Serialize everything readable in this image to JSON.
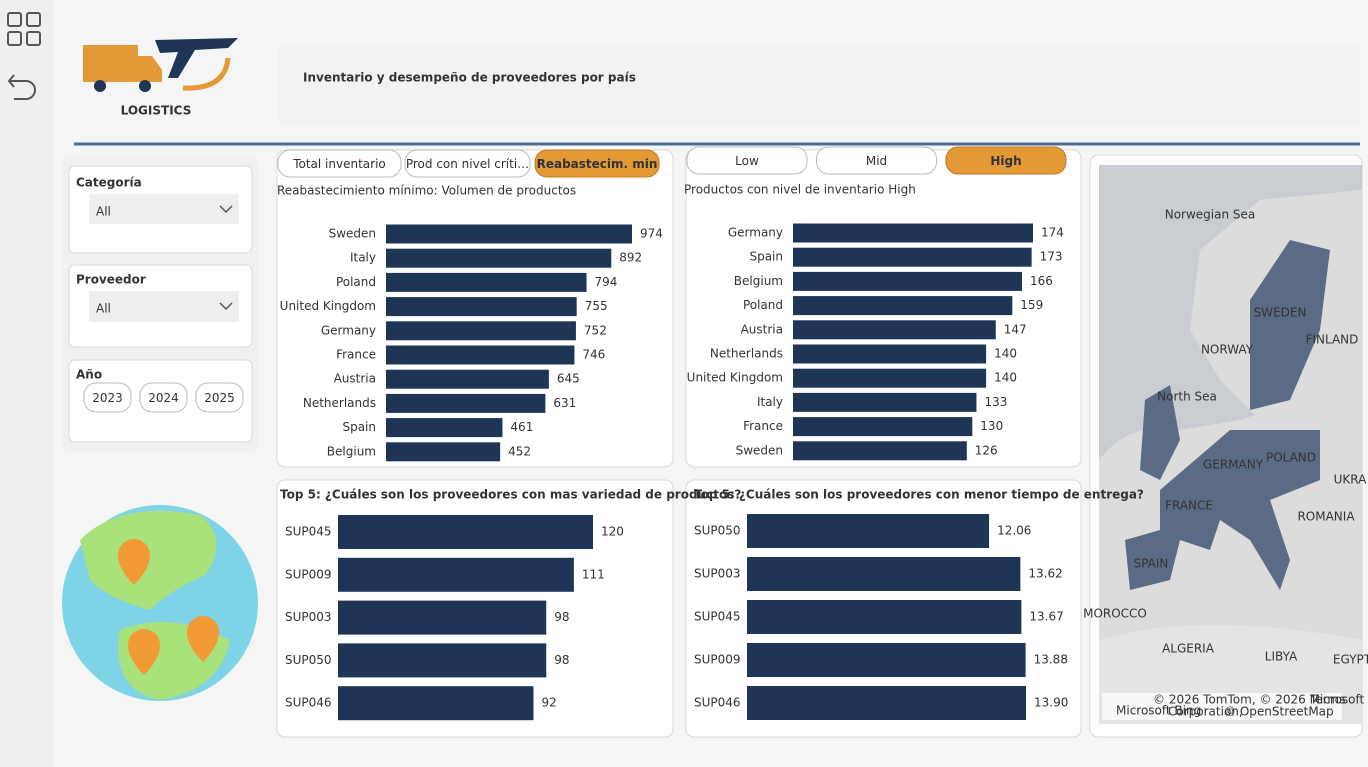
{
  "header": {
    "logo_text": "LOGISTICS",
    "title": "Inventario y desempeño de proveedores por país"
  },
  "filters": {
    "categoria": {
      "label": "Categoría",
      "value": "All"
    },
    "proveedor": {
      "label": "Proveedor",
      "value": "All"
    },
    "anio": {
      "label": "Año",
      "options": [
        "2023",
        "2024",
        "2025"
      ]
    }
  },
  "toggles": {
    "measure": [
      "Total inventario",
      "Prod con nivel críti…",
      "Reabastecim. min"
    ],
    "level": [
      "Low",
      "Mid",
      "High"
    ]
  },
  "chart_data": [
    {
      "type": "bar",
      "orientation": "horizontal",
      "title": "Reabastecimiento mínimo: Volumen de productos",
      "color": "#1f3556",
      "categories": [
        "Sweden",
        "Italy",
        "Poland",
        "United Kingdom",
        "Germany",
        "France",
        "Austria",
        "Netherlands",
        "Spain",
        "Belgium"
      ],
      "values": [
        974,
        892,
        794,
        755,
        752,
        746,
        645,
        631,
        461,
        452
      ]
    },
    {
      "type": "bar",
      "orientation": "horizontal",
      "title": "Productos con nivel de inventario High",
      "color": "#1f3556",
      "categories": [
        "Germany",
        "Spain",
        "Belgium",
        "Poland",
        "Austria",
        "Netherlands",
        "United Kingdom",
        "Italy",
        "France",
        "Sweden"
      ],
      "values": [
        174,
        173,
        166,
        159,
        147,
        140,
        140,
        133,
        130,
        126
      ]
    },
    {
      "type": "bar",
      "orientation": "horizontal",
      "title": "Top 5: ¿Cuáles son los proveedores con mas variedad de productos?",
      "color": "#1f3556",
      "categories": [
        "SUP045",
        "SUP009",
        "SUP003",
        "SUP050",
        "SUP046"
      ],
      "values": [
        120,
        111,
        98,
        98,
        92
      ]
    },
    {
      "type": "bar",
      "orientation": "horizontal",
      "title": "Top 5: ¿Cuáles son los proveedores con menor tiempo de entrega?",
      "color": "#1f3556",
      "categories": [
        "SUP050",
        "SUP003",
        "SUP045",
        "SUP009",
        "SUP046"
      ],
      "values": [
        12.06,
        13.62,
        13.67,
        13.88,
        13.9
      ],
      "value_labels": [
        "12.06",
        "13.62",
        "13.67",
        "13.88",
        "13.90"
      ]
    }
  ],
  "map": {
    "labels": [
      "Norwegian Sea",
      "SWEDEN",
      "FINLAND",
      "NORWAY",
      "North Sea",
      "GERMANY",
      "POLAND",
      "FRANCE",
      "SPAIN",
      "ROMANIA",
      "MOROCCO",
      "ALGERIA",
      "LIBYA",
      "UKRA",
      "EGYPT"
    ],
    "attribution": [
      "© 2026 TomTom, © 2026 Microsoft",
      "Terms",
      "Corporation,",
      "© OpenStreetMap",
      "Microsoft Bing"
    ]
  }
}
